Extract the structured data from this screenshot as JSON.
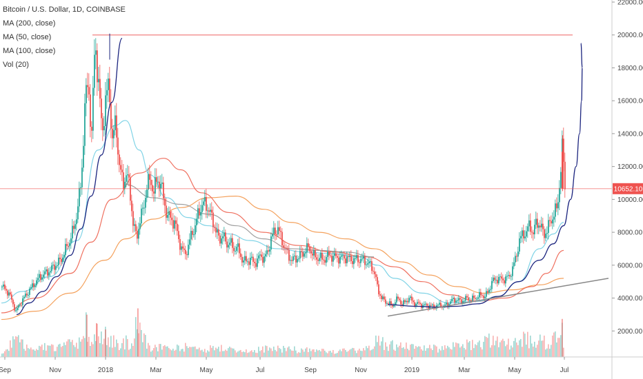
{
  "chart_data": {
    "type": "candlestick",
    "title": "Bitcoin / U.S. Dollar, 1D, COINBASE",
    "indicators": [
      "MA (200, close)",
      "MA (50, close)",
      "MA (100, close)",
      "Vol (20)"
    ],
    "ylim": [
      0,
      22000
    ],
    "y_ticks": [
      "2000.00",
      "4000.00",
      "6000.00",
      "8000.00",
      "10000.00",
      "12000.00",
      "14000.00",
      "16000.00",
      "18000.00",
      "20000.00",
      "22000.00"
    ],
    "x_ticks": [
      "Sep",
      "Nov",
      "2018",
      "Mar",
      "May",
      "Jul",
      "Sep",
      "Nov",
      "2019",
      "Mar",
      "May",
      "Jul"
    ],
    "last_price": "10652.10",
    "resistance_level": 20000,
    "colors": {
      "up": "#26a69a",
      "down": "#ef5350",
      "ma200": "#f4a15c",
      "ma50": "#7fd3e6",
      "ma100": "#ef6f5e",
      "ma_gray": "#9e9e9e",
      "curve": "#1a237e",
      "trendline": "#888888",
      "resistance": "#f08080",
      "price_tag": "#ef5350"
    },
    "price_path": [
      [
        0,
        4700
      ],
      [
        10,
        4300
      ],
      [
        20,
        3200
      ],
      [
        30,
        3900
      ],
      [
        40,
        4500
      ],
      [
        55,
        5300
      ],
      [
        70,
        5700
      ],
      [
        85,
        6300
      ],
      [
        95,
        7200
      ],
      [
        105,
        8300
      ],
      [
        115,
        11000
      ],
      [
        120,
        15800
      ],
      [
        125,
        17000
      ],
      [
        130,
        14000
      ],
      [
        135,
        19700
      ],
      [
        140,
        17000
      ],
      [
        145,
        14000
      ],
      [
        150,
        16000
      ],
      [
        155,
        17000
      ],
      [
        160,
        13500
      ],
      [
        165,
        14800
      ],
      [
        170,
        12000
      ],
      [
        175,
        11000
      ],
      [
        180,
        11500
      ],
      [
        185,
        10800
      ],
      [
        190,
        8500
      ],
      [
        195,
        7700
      ],
      [
        200,
        8700
      ],
      [
        205,
        9500
      ],
      [
        210,
        10800
      ],
      [
        215,
        11200
      ],
      [
        220,
        10500
      ],
      [
        225,
        11200
      ],
      [
        230,
        11000
      ],
      [
        235,
        9800
      ],
      [
        240,
        9000
      ],
      [
        245,
        8800
      ],
      [
        250,
        8600
      ],
      [
        255,
        7800
      ],
      [
        260,
        7000
      ],
      [
        265,
        6700
      ],
      [
        270,
        7100
      ],
      [
        275,
        8000
      ],
      [
        280,
        8300
      ],
      [
        285,
        9300
      ],
      [
        290,
        9600
      ],
      [
        295,
        9800
      ],
      [
        300,
        9300
      ],
      [
        305,
        8800
      ],
      [
        310,
        8100
      ],
      [
        315,
        7500
      ],
      [
        320,
        7900
      ],
      [
        325,
        7200
      ],
      [
        330,
        7500
      ],
      [
        335,
        6900
      ],
      [
        340,
        7200
      ],
      [
        345,
        6600
      ],
      [
        350,
        6300
      ],
      [
        355,
        6200
      ],
      [
        360,
        6400
      ],
      [
        365,
        6100
      ],
      [
        370,
        6300
      ],
      [
        375,
        6600
      ],
      [
        380,
        6400
      ],
      [
        385,
        6800
      ],
      [
        390,
        7600
      ],
      [
        395,
        8100
      ],
      [
        400,
        8200
      ],
      [
        405,
        7600
      ],
      [
        410,
        7000
      ],
      [
        415,
        6600
      ],
      [
        420,
        6300
      ],
      [
        425,
        6400
      ],
      [
        430,
        6500
      ],
      [
        435,
        6700
      ],
      [
        440,
        6900
      ],
      [
        445,
        7100
      ],
      [
        450,
        6700
      ],
      [
        455,
        6400
      ],
      [
        460,
        6500
      ],
      [
        465,
        6300
      ],
      [
        470,
        6500
      ],
      [
        475,
        6600
      ],
      [
        480,
        6500
      ],
      [
        485,
        6500
      ],
      [
        490,
        6400
      ],
      [
        495,
        6500
      ],
      [
        500,
        6400
      ],
      [
        505,
        6400
      ],
      [
        510,
        6300
      ],
      [
        515,
        6400
      ],
      [
        520,
        6300
      ],
      [
        525,
        6300
      ],
      [
        530,
        6100
      ],
      [
        535,
        6000
      ],
      [
        540,
        5500
      ],
      [
        545,
        4500
      ],
      [
        550,
        4000
      ],
      [
        555,
        3800
      ],
      [
        560,
        3700
      ],
      [
        565,
        3500
      ],
      [
        570,
        3800
      ],
      [
        575,
        4000
      ],
      [
        580,
        3600
      ],
      [
        585,
        3800
      ],
      [
        590,
        4000
      ],
      [
        595,
        3800
      ],
      [
        600,
        3600
      ],
      [
        605,
        3700
      ],
      [
        610,
        3500
      ],
      [
        615,
        3600
      ],
      [
        620,
        3500
      ],
      [
        625,
        3500
      ],
      [
        630,
        3500
      ],
      [
        635,
        3600
      ],
      [
        640,
        3500
      ],
      [
        645,
        3600
      ],
      [
        650,
        3800
      ],
      [
        655,
        3900
      ],
      [
        660,
        3900
      ],
      [
        665,
        3800
      ],
      [
        670,
        3900
      ],
      [
        675,
        4000
      ],
      [
        680,
        3900
      ],
      [
        685,
        4000
      ],
      [
        690,
        4100
      ],
      [
        695,
        4200
      ],
      [
        700,
        4100
      ],
      [
        705,
        4400
      ],
      [
        710,
        5000
      ],
      [
        715,
        5100
      ],
      [
        720,
        5200
      ],
      [
        725,
        5100
      ],
      [
        730,
        5200
      ],
      [
        735,
        5300
      ],
      [
        740,
        5800
      ],
      [
        745,
        6500
      ],
      [
        750,
        7500
      ],
      [
        755,
        7900
      ],
      [
        760,
        8000
      ],
      [
        765,
        8500
      ],
      [
        770,
        7900
      ],
      [
        775,
        8700
      ],
      [
        780,
        8400
      ],
      [
        785,
        7900
      ],
      [
        790,
        8100
      ],
      [
        795,
        8700
      ],
      [
        800,
        9100
      ],
      [
        805,
        9500
      ],
      [
        808,
        11000
      ],
      [
        810,
        11800
      ],
      [
        812,
        13000
      ],
      [
        814,
        12300
      ],
      [
        816,
        10700
      ]
    ],
    "ma200_path": [
      [
        0,
        2700
      ],
      [
        50,
        3200
      ],
      [
        100,
        4300
      ],
      [
        150,
        6300
      ],
      [
        180,
        7600
      ],
      [
        220,
        8800
      ],
      [
        260,
        9500
      ],
      [
        300,
        10100
      ],
      [
        340,
        10200
      ],
      [
        380,
        9400
      ],
      [
        420,
        8600
      ],
      [
        460,
        8000
      ],
      [
        500,
        7600
      ],
      [
        540,
        7000
      ],
      [
        580,
        6200
      ],
      [
        620,
        5400
      ],
      [
        660,
        4700
      ],
      [
        700,
        4300
      ],
      [
        740,
        4500
      ],
      [
        780,
        4800
      ],
      [
        815,
        5200
      ]
    ],
    "ma100_path": [
      [
        0,
        3100
      ],
      [
        50,
        4000
      ],
      [
        100,
        5500
      ],
      [
        130,
        7400
      ],
      [
        160,
        10000
      ],
      [
        200,
        11600
      ],
      [
        235,
        12500
      ],
      [
        260,
        11800
      ],
      [
        290,
        10400
      ],
      [
        330,
        9200
      ],
      [
        380,
        8000
      ],
      [
        430,
        7200
      ],
      [
        480,
        6800
      ],
      [
        530,
        6500
      ],
      [
        570,
        5900
      ],
      [
        610,
        5000
      ],
      [
        650,
        4200
      ],
      [
        690,
        3800
      ],
      [
        730,
        4000
      ],
      [
        770,
        4700
      ],
      [
        790,
        5500
      ],
      [
        815,
        6900
      ]
    ],
    "ma50_path": [
      [
        0,
        3700
      ],
      [
        30,
        4400
      ],
      [
        70,
        5300
      ],
      [
        110,
        7500
      ],
      [
        140,
        13000
      ],
      [
        165,
        14500
      ],
      [
        180,
        14800
      ],
      [
        200,
        13000
      ],
      [
        215,
        11500
      ],
      [
        240,
        10100
      ],
      [
        270,
        8900
      ],
      [
        300,
        8400
      ],
      [
        330,
        7900
      ],
      [
        360,
        7500
      ],
      [
        400,
        7000
      ],
      [
        440,
        6800
      ],
      [
        480,
        6700
      ],
      [
        520,
        6500
      ],
      [
        545,
        6000
      ],
      [
        570,
        5200
      ],
      [
        610,
        4300
      ],
      [
        650,
        3700
      ],
      [
        690,
        3800
      ],
      [
        720,
        4100
      ],
      [
        750,
        5000
      ],
      [
        780,
        7000
      ],
      [
        800,
        7900
      ],
      [
        815,
        8600
      ]
    ],
    "ma_gray_path": [
      [
        180,
        10900
      ],
      [
        220,
        10100
      ],
      [
        260,
        9700
      ],
      [
        300,
        9100
      ],
      [
        340,
        8400
      ],
      [
        380,
        7600
      ],
      [
        420,
        7000
      ],
      [
        460,
        6900
      ],
      [
        500,
        6800
      ],
      [
        540,
        6500
      ]
    ],
    "curve_path": [
      [
        22,
        3000
      ],
      [
        40,
        3700
      ],
      [
        60,
        4400
      ],
      [
        80,
        5300
      ],
      [
        100,
        6600
      ],
      [
        115,
        8200
      ],
      [
        130,
        10200
      ],
      [
        145,
        12700
      ],
      [
        160,
        15900
      ],
      [
        175,
        19800
      ]
    ],
    "curve2_path": [
      [
        560,
        3600
      ],
      [
        600,
        3500
      ],
      [
        630,
        3450
      ],
      [
        660,
        3500
      ],
      [
        690,
        3650
      ],
      [
        720,
        4100
      ],
      [
        750,
        5000
      ],
      [
        780,
        6300
      ],
      [
        800,
        7300
      ],
      [
        815,
        8400
      ],
      [
        825,
        10000
      ],
      [
        833,
        12000
      ],
      [
        838,
        14000
      ],
      [
        841,
        16000
      ],
      [
        842,
        18000
      ],
      [
        840,
        19500
      ]
    ],
    "trend_line": [
      [
        560,
        2900
      ],
      [
        880,
        5200
      ]
    ],
    "volume_bars": [
      [
        10,
        1400
      ],
      [
        22,
        2100
      ],
      [
        35,
        1000
      ],
      [
        50,
        1200
      ],
      [
        65,
        1300
      ],
      [
        80,
        1000
      ],
      [
        95,
        1500
      ],
      [
        110,
        1400
      ],
      [
        118,
        2300
      ],
      [
        123,
        4000
      ],
      [
        130,
        1700
      ],
      [
        137,
        3200
      ],
      [
        143,
        2100
      ],
      [
        150,
        2600
      ],
      [
        160,
        1900
      ],
      [
        170,
        1600
      ],
      [
        182,
        1800
      ],
      [
        190,
        1500
      ],
      [
        197,
        4600
      ],
      [
        210,
        1300
      ],
      [
        225,
        1200
      ],
      [
        240,
        1100
      ],
      [
        255,
        1000
      ],
      [
        270,
        1200
      ],
      [
        285,
        1100
      ],
      [
        300,
        1000
      ],
      [
        315,
        1100
      ],
      [
        330,
        900
      ],
      [
        345,
        800
      ],
      [
        360,
        800
      ],
      [
        375,
        900
      ],
      [
        390,
        1000
      ],
      [
        405,
        1000
      ],
      [
        420,
        900
      ],
      [
        440,
        800
      ],
      [
        460,
        700
      ],
      [
        480,
        700
      ],
      [
        500,
        700
      ],
      [
        520,
        800
      ],
      [
        537,
        1000
      ],
      [
        545,
        2300
      ],
      [
        550,
        1800
      ],
      [
        560,
        1400
      ],
      [
        575,
        1300
      ],
      [
        590,
        1200
      ],
      [
        605,
        1100
      ],
      [
        620,
        1000
      ],
      [
        640,
        1100
      ],
      [
        660,
        1300
      ],
      [
        680,
        1600
      ],
      [
        700,
        1800
      ],
      [
        710,
        2200
      ],
      [
        725,
        1500
      ],
      [
        740,
        1600
      ],
      [
        752,
        1900
      ],
      [
        758,
        2500
      ],
      [
        765,
        1700
      ],
      [
        775,
        2100
      ],
      [
        790,
        1600
      ],
      [
        800,
        2000
      ],
      [
        808,
        2300
      ],
      [
        812,
        3600
      ]
    ]
  },
  "ui": {
    "title": "Bitcoin / U.S. Dollar, 1D, COINBASE",
    "legend": [
      "MA (200, close)",
      "MA (50, close)",
      "MA (100, close)",
      "Vol (20)"
    ],
    "price_tag": "10652.10"
  }
}
